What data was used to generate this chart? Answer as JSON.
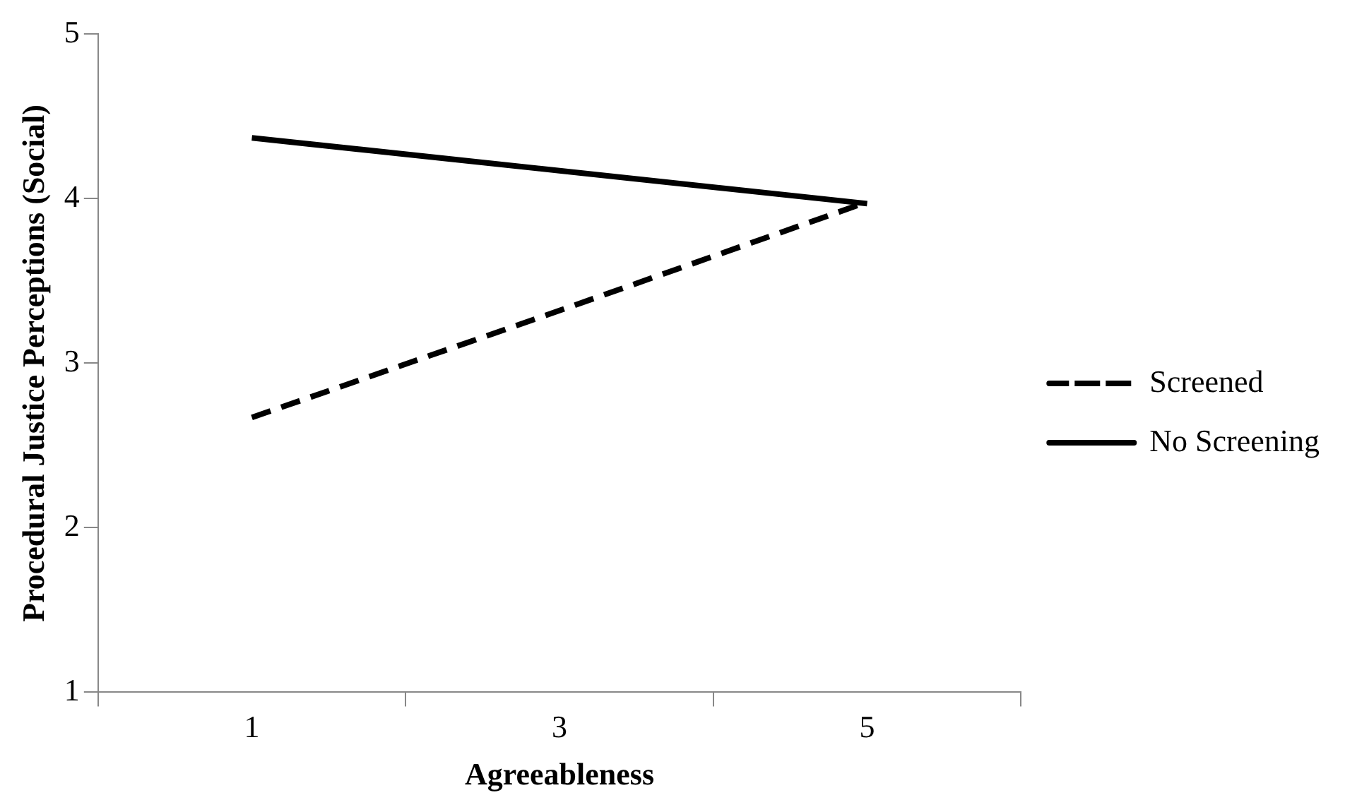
{
  "chart_data": {
    "type": "line",
    "xlabel": "Agreeableness",
    "ylabel": "Procedural Justice Perceptions (Social)",
    "categories": [
      "1",
      "3",
      "5"
    ],
    "series": [
      {
        "name": "Screened",
        "color": "#000000",
        "values": [
          2.67,
          3.32,
          3.98
        ],
        "line_style": "dashed"
      },
      {
        "name": "No Screening",
        "color": "#000000",
        "values": [
          4.37,
          4.17,
          3.97
        ],
        "line_style": "solid"
      }
    ],
    "ylim": [
      1,
      5
    ],
    "yticks": [
      1,
      2,
      3,
      4,
      5
    ],
    "grid": false,
    "legend": "right",
    "marker": "none"
  }
}
